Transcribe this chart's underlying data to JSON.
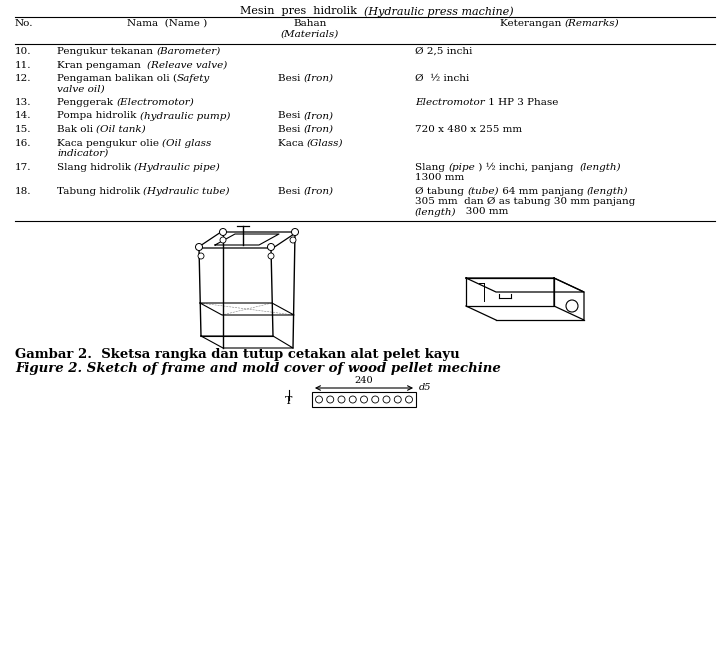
{
  "title_normal": "Mesin  pres  hidrolik  ",
  "title_italic": "(Hydraulic press machine)",
  "col_headers": [
    "No.",
    "Nama  (Name )",
    "Bahan\n(Materials)",
    "Keterangan (Remarks)"
  ],
  "rows": [
    {
      "no": "10.",
      "nama": [
        [
          "Pengukur tekanan ",
          "normal"
        ],
        [
          "(Barometer)",
          "italic"
        ]
      ],
      "bahan": [],
      "ket": [
        [
          "Ø 2,5 inchi",
          "normal"
        ]
      ],
      "lines": 1
    },
    {
      "no": "11.",
      "nama": [
        [
          "Kran pengaman  ",
          "normal"
        ],
        [
          "(Releave valve)",
          "italic"
        ]
      ],
      "bahan": [],
      "ket": [],
      "lines": 1
    },
    {
      "no": "12.",
      "nama": [
        [
          "Pengaman balikan oli (",
          "normal"
        ],
        [
          "Safety",
          "italic"
        ],
        [
          "\nvalve oil)",
          "italic"
        ]
      ],
      "bahan": [
        [
          "Besi ",
          "normal"
        ],
        [
          "(Iron)",
          "italic"
        ]
      ],
      "ket": [
        [
          "Ø  ½ inchi",
          "normal"
        ]
      ],
      "lines": 2
    },
    {
      "no": "13.",
      "nama": [
        [
          "Penggerak ",
          "normal"
        ],
        [
          "(Electromotor)",
          "italic"
        ]
      ],
      "bahan": [],
      "ket": [
        [
          "Electromotor",
          "italic"
        ],
        [
          " 1 HP 3 Phase",
          "normal"
        ]
      ],
      "lines": 1
    },
    {
      "no": "14.",
      "nama": [
        [
          "Pompa hidrolik ",
          "normal"
        ],
        [
          "(hydraulic pump)",
          "italic"
        ]
      ],
      "bahan": [
        [
          "Besi ",
          "normal"
        ],
        [
          "(Iron)",
          "italic"
        ]
      ],
      "ket": [],
      "lines": 1
    },
    {
      "no": "15.",
      "nama": [
        [
          "Bak oli ",
          "normal"
        ],
        [
          "(Oil tank)",
          "italic"
        ]
      ],
      "bahan": [
        [
          "Besi ",
          "normal"
        ],
        [
          "(Iron)",
          "italic"
        ]
      ],
      "ket": [
        [
          "720 x 480 x 255 mm",
          "normal"
        ]
      ],
      "lines": 1
    },
    {
      "no": "16.",
      "nama": [
        [
          "Kaca pengukur olie ",
          "normal"
        ],
        [
          "(Oil glass",
          "italic"
        ],
        [
          "\nindicator)",
          "italic"
        ]
      ],
      "bahan": [
        [
          "Kaca ",
          "normal"
        ],
        [
          "(Glass)",
          "italic"
        ]
      ],
      "ket": [],
      "lines": 2
    },
    {
      "no": "17.",
      "nama": [
        [
          "Slang hidrolik ",
          "normal"
        ],
        [
          "(Hydraulic pipe)",
          "italic"
        ]
      ],
      "bahan": [],
      "ket": [
        [
          "Slang ",
          "normal"
        ],
        [
          "(pipe",
          "italic"
        ],
        [
          " ) ½ inchi, panjang  ",
          "normal"
        ],
        [
          "(length)",
          "italic"
        ],
        [
          "\n1300 mm",
          "normal"
        ]
      ],
      "lines": 2
    },
    {
      "no": "18.",
      "nama": [
        [
          "Tabung hidrolik ",
          "normal"
        ],
        [
          "(Hydraulic tube)",
          "italic"
        ]
      ],
      "bahan": [
        [
          "Besi ",
          "normal"
        ],
        [
          "(Iron)",
          "italic"
        ]
      ],
      "ket": [
        [
          "Ø tabung ",
          "normal"
        ],
        [
          "(tube)",
          "italic"
        ],
        [
          " 64 mm panjang ",
          "normal"
        ],
        [
          "(length)",
          "italic"
        ],
        [
          "\n305 mm  dan Ø as tabung 30 mm panjang\n",
          "normal"
        ],
        [
          "(length)",
          "italic"
        ],
        [
          "   300 mm",
          "normal"
        ]
      ],
      "lines": 3
    }
  ],
  "caption_bold": "Gambar 2.  Sketsa rangka dan tutup cetakan alat pelet kayu",
  "caption_italic": "Figure 2. Sketch of frame and mold cover of wood pellet mechine",
  "bg_color": "#ffffff",
  "text_color": "#000000",
  "fontsize": 7.5,
  "header_fontsize": 7.5
}
